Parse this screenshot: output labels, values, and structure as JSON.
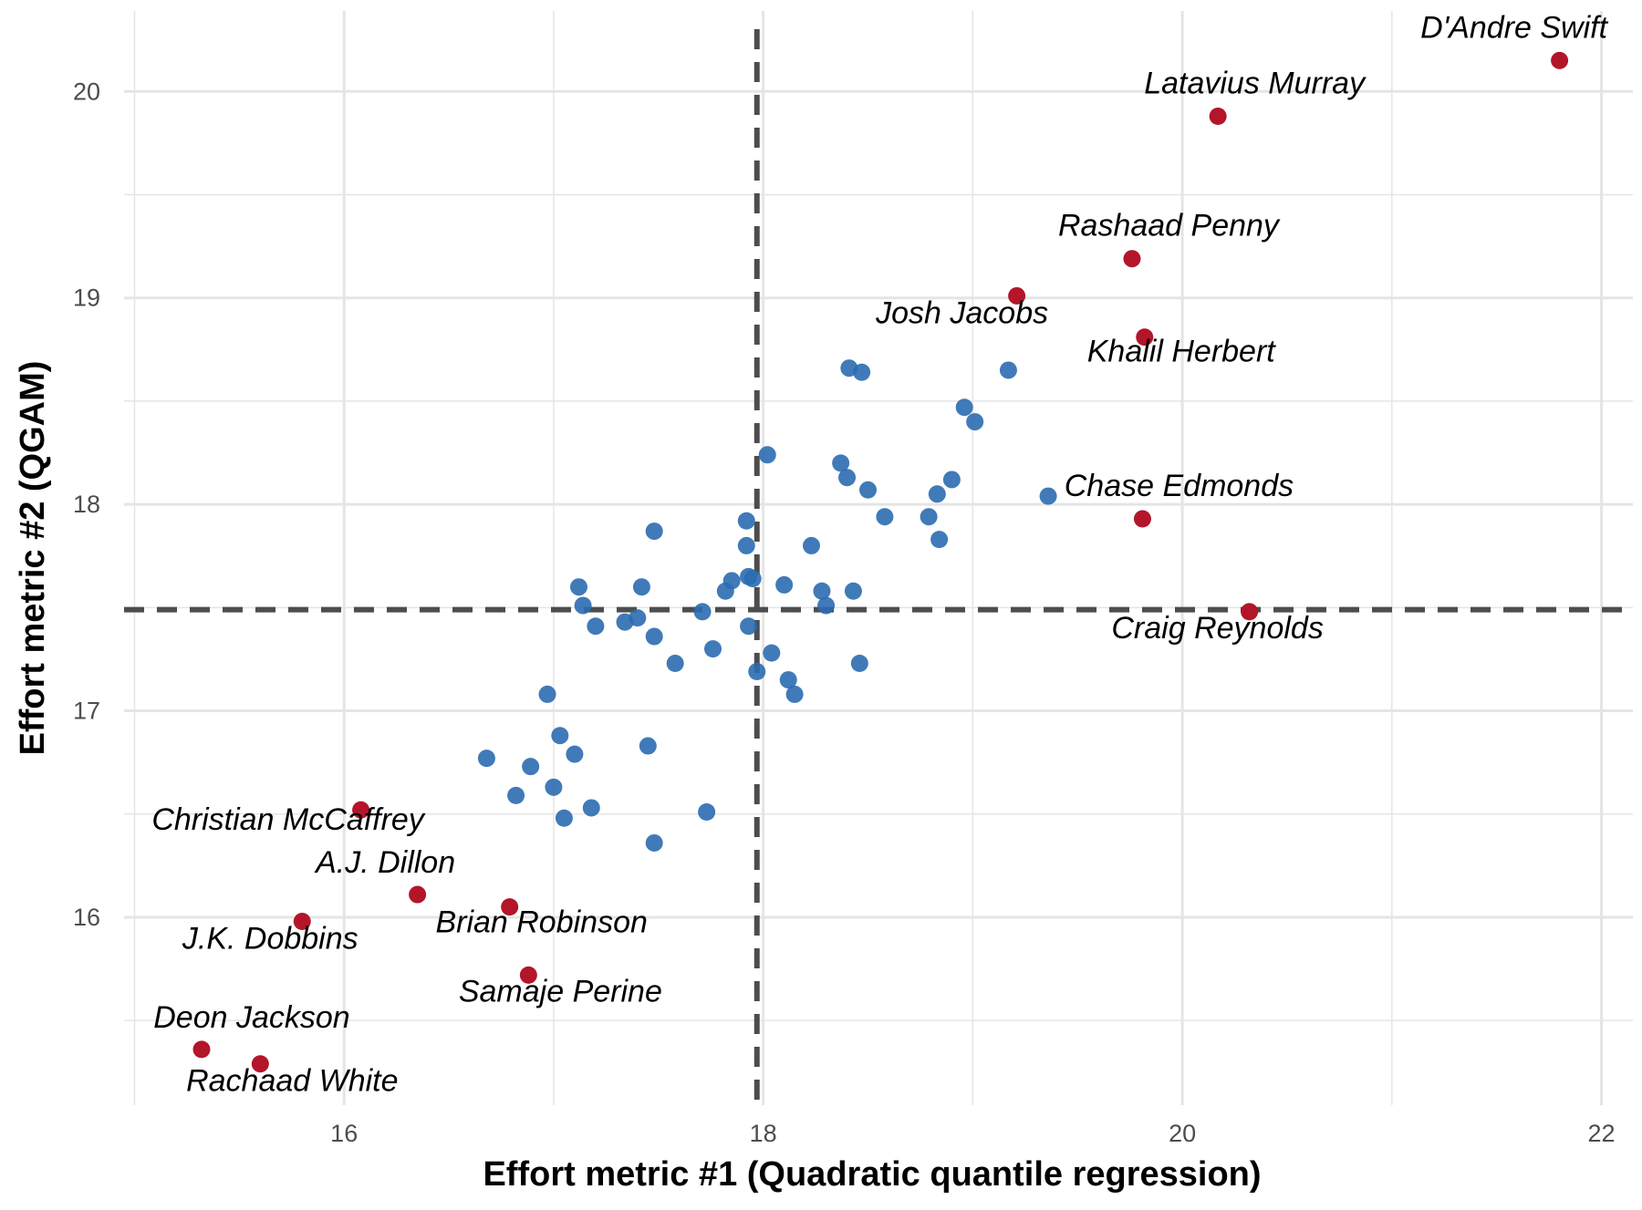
{
  "chart_data": {
    "type": "scatter",
    "title": "",
    "xlabel": "Effort metric #1 (Quadratic quantile regression)",
    "ylabel": "Effort metric #2 (QGAM)",
    "xlim": [
      14.95,
      22.15
    ],
    "ylim": [
      15.09,
      20.39
    ],
    "x_ticks": [
      16,
      18,
      20,
      22
    ],
    "y_ticks": [
      16,
      17,
      18,
      19,
      20
    ],
    "x_tick_labels": [
      "16",
      "18",
      "20",
      "22"
    ],
    "y_tick_labels": [
      "16",
      "17",
      "18",
      "19",
      "20"
    ],
    "grid": true,
    "legend": "none",
    "reference_lines": {
      "vertical_x": 17.97,
      "horizontal_y": 17.49
    },
    "colors": {
      "regular": "#2b6cb0",
      "highlighted": "#b31529",
      "reference_line": "#4d4d4d",
      "grid": "#e5e5e5"
    },
    "series": [
      {
        "points": [
          [
            18.41,
            18.66
          ],
          [
            18.47,
            18.64
          ],
          [
            19.17,
            18.65
          ],
          [
            18.96,
            18.47
          ],
          [
            19.01,
            18.4
          ],
          [
            18.02,
            18.24
          ],
          [
            18.37,
            18.2
          ],
          [
            18.4,
            18.13
          ],
          [
            18.5,
            18.07
          ],
          [
            18.9,
            18.12
          ],
          [
            18.83,
            18.05
          ],
          [
            19.36,
            18.04
          ],
          [
            18.58,
            17.94
          ],
          [
            18.79,
            17.94
          ],
          [
            18.84,
            17.83
          ],
          [
            17.48,
            17.87
          ],
          [
            17.92,
            17.92
          ],
          [
            17.92,
            17.8
          ],
          [
            18.23,
            17.8
          ],
          [
            17.93,
            17.65
          ],
          [
            17.95,
            17.64
          ],
          [
            17.85,
            17.63
          ],
          [
            17.82,
            17.58
          ],
          [
            18.1,
            17.61
          ],
          [
            18.28,
            17.58
          ],
          [
            18.43,
            17.58
          ],
          [
            18.3,
            17.51
          ],
          [
            17.12,
            17.6
          ],
          [
            17.42,
            17.6
          ],
          [
            17.14,
            17.51
          ],
          [
            17.71,
            17.48
          ],
          [
            17.34,
            17.43
          ],
          [
            17.4,
            17.45
          ],
          [
            17.2,
            17.41
          ],
          [
            17.93,
            17.41
          ],
          [
            17.48,
            17.36
          ],
          [
            17.76,
            17.3
          ],
          [
            18.04,
            17.28
          ],
          [
            17.58,
            17.23
          ],
          [
            18.46,
            17.23
          ],
          [
            17.97,
            17.19
          ],
          [
            18.12,
            17.15
          ],
          [
            18.15,
            17.08
          ],
          [
            16.97,
            17.08
          ],
          [
            17.03,
            16.88
          ],
          [
            16.68,
            16.77
          ],
          [
            17.1,
            16.79
          ],
          [
            16.89,
            16.73
          ],
          [
            17.45,
            16.83
          ],
          [
            17.0,
            16.63
          ],
          [
            16.82,
            16.59
          ],
          [
            17.18,
            16.53
          ],
          [
            17.05,
            16.48
          ],
          [
            17.73,
            16.51
          ],
          [
            17.48,
            16.36
          ]
        ]
      },
      {
        "points": [
          [
            21.8,
            20.15
          ],
          [
            20.17,
            19.88
          ],
          [
            19.21,
            19.01
          ],
          [
            19.76,
            19.19
          ],
          [
            19.82,
            18.81
          ],
          [
            19.81,
            17.93
          ],
          [
            20.32,
            17.48
          ],
          [
            16.08,
            16.52
          ],
          [
            16.35,
            16.11
          ],
          [
            16.79,
            16.05
          ],
          [
            15.8,
            15.98
          ],
          [
            16.88,
            15.72
          ],
          [
            15.32,
            15.36
          ],
          [
            15.6,
            15.29
          ]
        ],
        "labels": [
          "D'Andre Swift",
          "Latavius Murray",
          "Josh Jacobs",
          "Rashaad Penny",
          "Khalil Herbert",
          "Chase Edmonds",
          "Craig Reynolds",
          "Christian McCaffrey",
          "A.J. Dillon",
          "Brian Robinson",
          "J.K. Dobbins",
          "Samaje Perine",
          "Deon Jackson",
          "Rachaad White"
        ]
      }
    ]
  }
}
